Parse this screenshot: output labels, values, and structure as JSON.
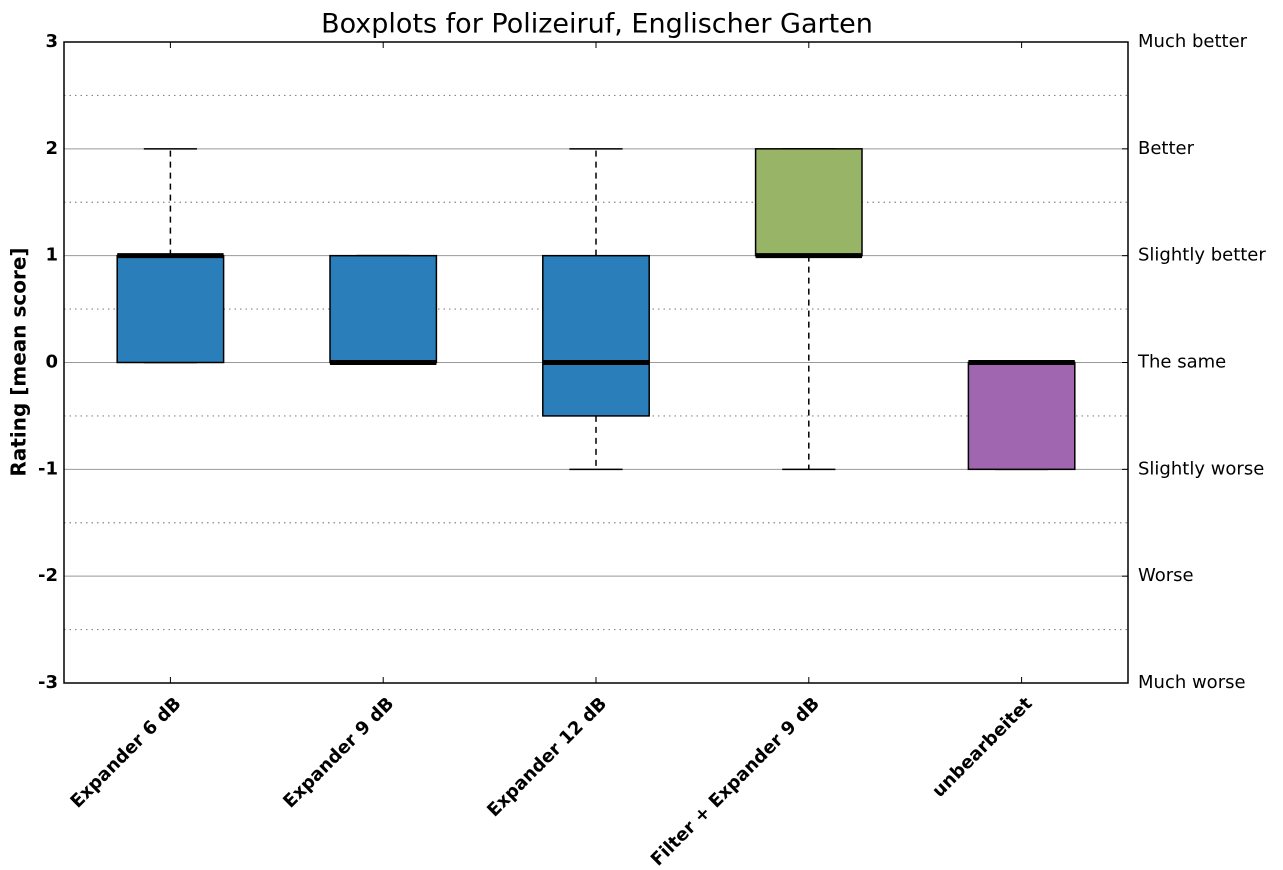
{
  "chart_data": {
    "type": "boxplot",
    "title": "Boxplots for Polizeiruf, Englischer Garten",
    "ylabel": "Rating [mean score]",
    "categories": [
      "Expander 6 dB",
      "Expander 9 dB",
      "Expander 12 dB",
      "Filter + Expander 9 dB",
      "unbearbeitet"
    ],
    "boxes": [
      {
        "whislo": 0,
        "q1": 0,
        "median": 1,
        "q3": 1,
        "whishi": 2,
        "color": "#2a7fba"
      },
      {
        "whislo": 0,
        "q1": 0,
        "median": 0,
        "q3": 1,
        "whishi": 1,
        "color": "#2a7fba"
      },
      {
        "whislo": -1,
        "q1": -0.5,
        "median": 0,
        "q3": 1,
        "whishi": 2,
        "color": "#2a7fba"
      },
      {
        "whislo": -1,
        "q1": 1,
        "median": 1,
        "q3": 2,
        "whishi": 2,
        "color": "#98b466"
      },
      {
        "whislo": -1,
        "q1": -1,
        "median": 0,
        "q3": 0,
        "whishi": 0,
        "color": "#a066b0"
      }
    ],
    "ylim": [
      -3,
      3
    ],
    "yticks": [
      -3,
      -2,
      -1,
      0,
      1,
      2,
      3
    ],
    "minor_yticks": [
      -2.5,
      -1.5,
      -0.5,
      0.5,
      1.5,
      2.5
    ],
    "y2lim": [
      -3,
      3
    ],
    "y2ticks": [
      {
        "value": -3,
        "label": "Much worse"
      },
      {
        "value": -2,
        "label": "Worse"
      },
      {
        "value": -1,
        "label": "Slightly worse"
      },
      {
        "value": 0,
        "label": "The same"
      },
      {
        "value": 1,
        "label": "Slightly better"
      },
      {
        "value": 2,
        "label": "Better"
      },
      {
        "value": 3,
        "label": "Much better"
      }
    ],
    "grid": true
  }
}
